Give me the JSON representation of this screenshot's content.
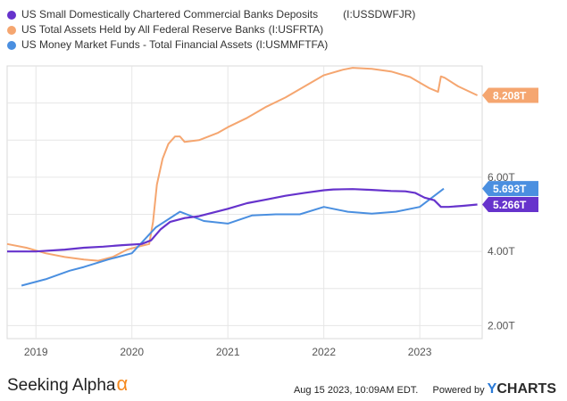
{
  "chart_data": {
    "type": "line",
    "title": "",
    "xlabel": "",
    "ylabel": "",
    "x_tick_labels": [
      "2019",
      "2020",
      "2021",
      "2022",
      "2023"
    ],
    "y_tick_labels": [
      "2.00T",
      "4.00T",
      "6.00T"
    ],
    "y_ticks": [
      2,
      4,
      6
    ],
    "xlim": [
      2018.7,
      2023.65
    ],
    "ylim": [
      1.65,
      9.0
    ],
    "grid": true,
    "legend_position": "top-left",
    "series": [
      {
        "name": "US Small Domestically Chartered Commercial Banks Deposits",
        "code": "(I:USSDWFJR)",
        "color": "#6633cc",
        "end_label": "5.266T",
        "x": [
          2018.7,
          2019.0,
          2019.3,
          2019.5,
          2019.7,
          2019.9,
          2020.1,
          2020.2,
          2020.3,
          2020.4,
          2020.55,
          2020.7,
          2020.85,
          2021.0,
          2021.2,
          2021.4,
          2021.6,
          2021.8,
          2022.0,
          2022.1,
          2022.3,
          2022.5,
          2022.7,
          2022.85,
          2022.95,
          2023.05,
          2023.15,
          2023.22,
          2023.3,
          2023.45,
          2023.6
        ],
        "y": [
          4.0,
          4.0,
          4.05,
          4.1,
          4.13,
          4.17,
          4.2,
          4.3,
          4.6,
          4.8,
          4.9,
          4.95,
          5.05,
          5.15,
          5.3,
          5.4,
          5.5,
          5.58,
          5.65,
          5.67,
          5.68,
          5.66,
          5.63,
          5.62,
          5.58,
          5.45,
          5.38,
          5.2,
          5.2,
          5.23,
          5.266
        ]
      },
      {
        "name": "US Total Assets Held by All Federal Reserve Banks",
        "code": "(I:USFRTA)",
        "color": "#f5a670",
        "end_label": "8.208T",
        "x": [
          2018.7,
          2018.9,
          2019.1,
          2019.3,
          2019.5,
          2019.65,
          2019.8,
          2019.95,
          2020.1,
          2020.18,
          2020.22,
          2020.26,
          2020.32,
          2020.38,
          2020.45,
          2020.5,
          2020.55,
          2020.7,
          2020.9,
          2021.0,
          2021.2,
          2021.4,
          2021.6,
          2021.8,
          2022.0,
          2022.2,
          2022.3,
          2022.5,
          2022.7,
          2022.9,
          2023.0,
          2023.1,
          2023.19,
          2023.22,
          2023.26,
          2023.4,
          2023.6
        ],
        "y": [
          4.2,
          4.1,
          3.95,
          3.85,
          3.78,
          3.75,
          3.85,
          4.05,
          4.15,
          4.2,
          4.8,
          5.8,
          6.5,
          6.9,
          7.1,
          7.1,
          6.95,
          7.0,
          7.2,
          7.35,
          7.6,
          7.9,
          8.15,
          8.45,
          8.75,
          8.9,
          8.95,
          8.92,
          8.85,
          8.7,
          8.55,
          8.4,
          8.3,
          8.72,
          8.68,
          8.45,
          8.208
        ]
      },
      {
        "name": "US Money Market Funds - Total Financial Assets",
        "code": "(I:USMMFTFA)",
        "color": "#4a8fe0",
        "end_label": "5.693T",
        "x": [
          2018.85,
          2019.1,
          2019.35,
          2019.5,
          2019.75,
          2020.0,
          2020.25,
          2020.5,
          2020.75,
          2021.0,
          2021.25,
          2021.5,
          2021.75,
          2022.0,
          2022.25,
          2022.5,
          2022.75,
          2023.0,
          2023.25
        ],
        "y": [
          3.08,
          3.25,
          3.48,
          3.58,
          3.78,
          3.95,
          4.65,
          5.07,
          4.82,
          4.75,
          4.97,
          5.0,
          5.0,
          5.2,
          5.07,
          5.02,
          5.07,
          5.2,
          5.693
        ]
      }
    ]
  },
  "footer": {
    "brand": "Seeking Alpha",
    "brand_symbol": "α",
    "timestamp": "Aug 15 2023, 10:09AM EDT.",
    "powered_by": "Powered by",
    "ycharts_y": "Y",
    "ycharts_rest": "CHARTS"
  }
}
